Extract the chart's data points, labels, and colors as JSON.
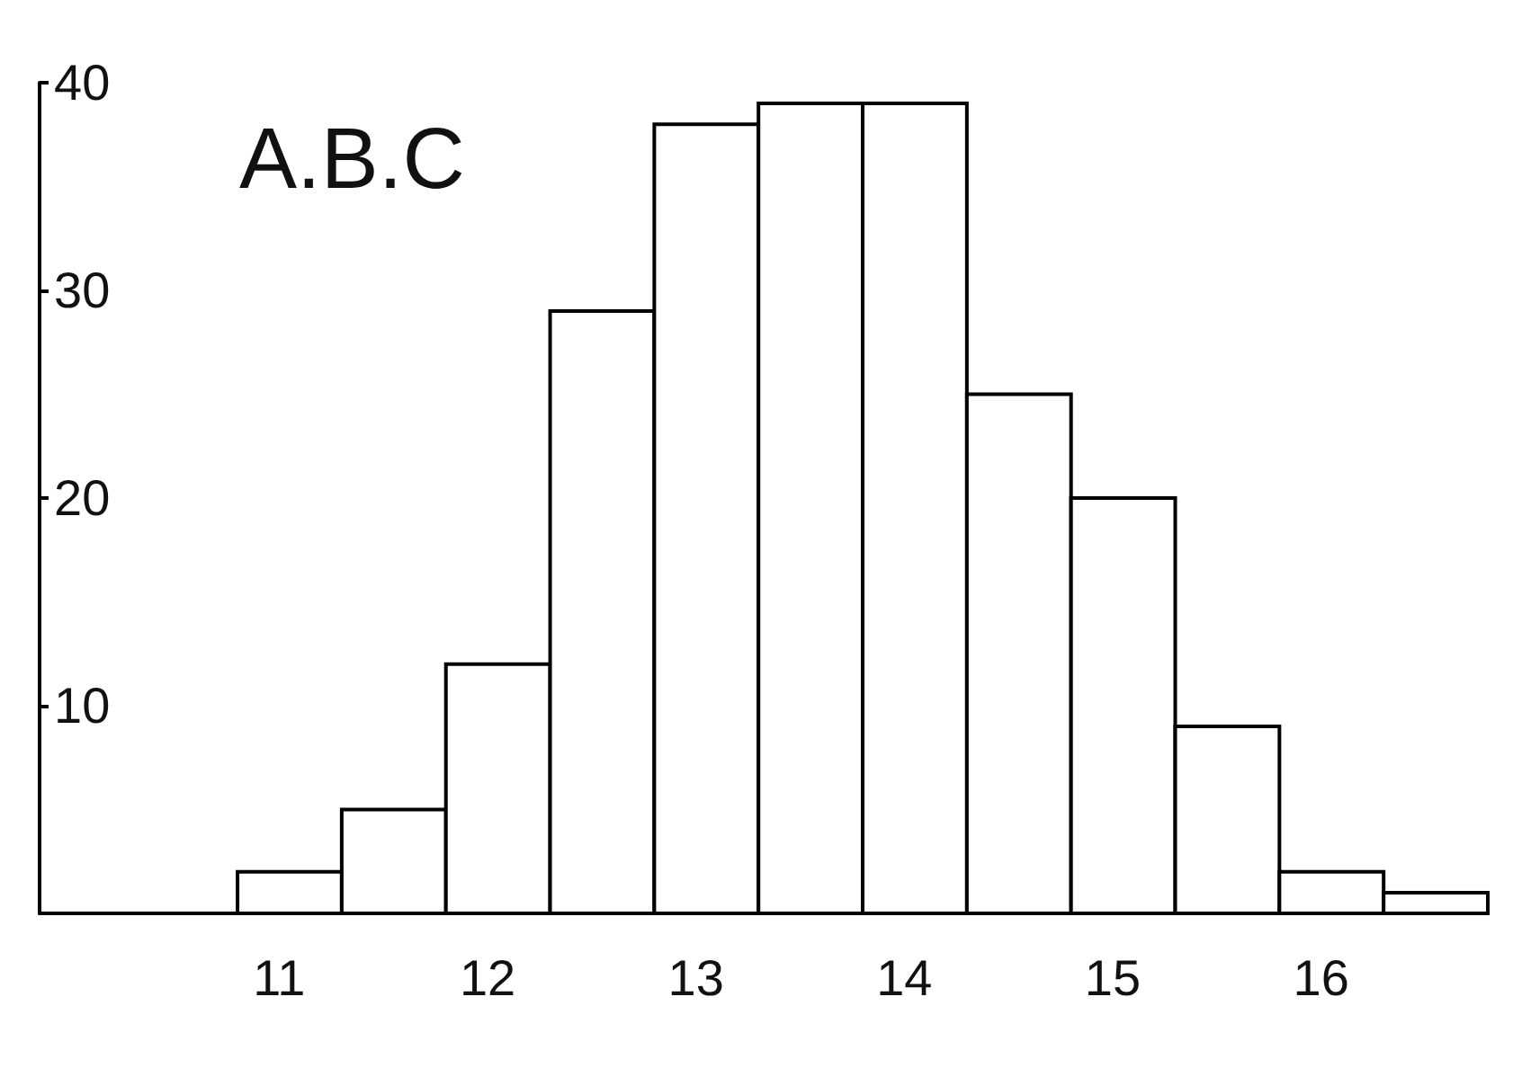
{
  "chart_data": {
    "type": "histogram",
    "title": "A.B.C",
    "bins": [
      10.8,
      11.3,
      11.8,
      12.3,
      12.8,
      13.3,
      13.8,
      14.3,
      14.8,
      15.3,
      15.8,
      16.3,
      16.8
    ],
    "values": [
      2,
      5,
      12,
      29,
      38,
      39,
      39,
      25,
      20,
      9,
      2,
      1
    ],
    "color": "#ffffff",
    "xlim": [
      9.85,
      16.8
    ],
    "xticks": [
      11,
      12,
      13,
      14,
      15,
      16
    ],
    "ylim": [
      0,
      40
    ],
    "yticks": [
      10,
      20,
      30,
      40
    ],
    "grid": false
  }
}
